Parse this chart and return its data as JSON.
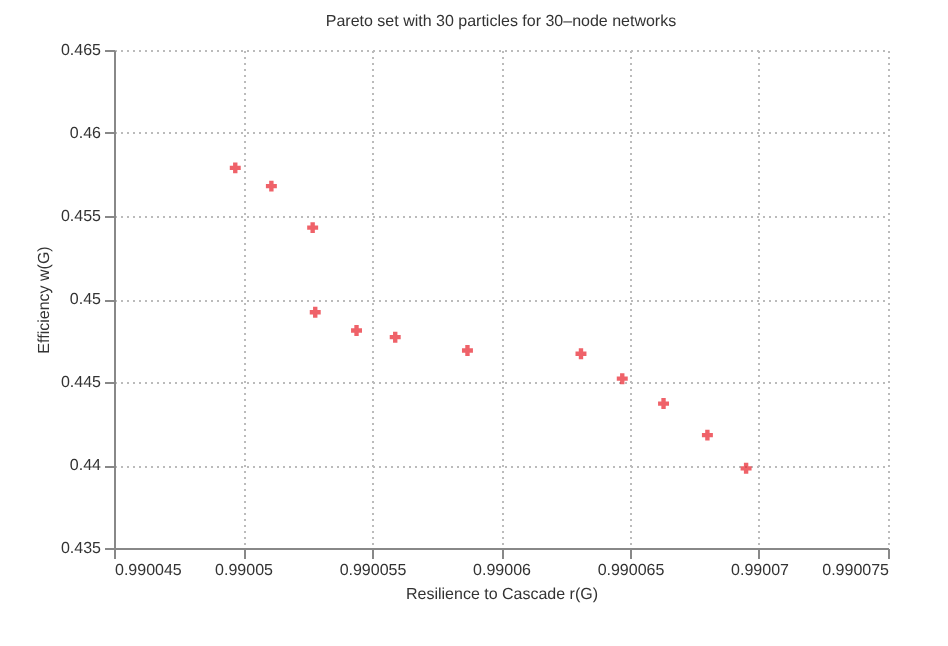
{
  "chart_data": {
    "type": "scatter",
    "title": "Pareto set with 30 particles for 30–node networks",
    "xlabel": "Resilience to Cascade r(G)",
    "ylabel": "Efficiency w(G)",
    "x": [
      0.9900497,
      0.9900511,
      0.9900527,
      0.9900528,
      0.9900544,
      0.9900559,
      0.9900587,
      0.9900631,
      0.9900647,
      0.9900663,
      0.990068,
      0.9900695
    ],
    "series": [
      {
        "color": "#e8202a",
        "values": [
          0.4579,
          0.4568,
          0.4543,
          0.4492,
          0.4481,
          0.4477,
          0.4469,
          0.4467,
          0.4452,
          0.4437,
          0.4418,
          0.4398
        ]
      }
    ],
    "xlim": [
      0.990045,
      0.990075
    ],
    "xticks": [
      0.990045,
      0.99005,
      0.990055,
      0.99006,
      0.990065,
      0.99007,
      0.990075
    ],
    "ylim": [
      0.435,
      0.465
    ],
    "yticks": [
      0.435,
      0.44,
      0.445,
      0.45,
      0.455,
      0.46,
      0.465
    ],
    "grid": true,
    "marker": "cross"
  }
}
